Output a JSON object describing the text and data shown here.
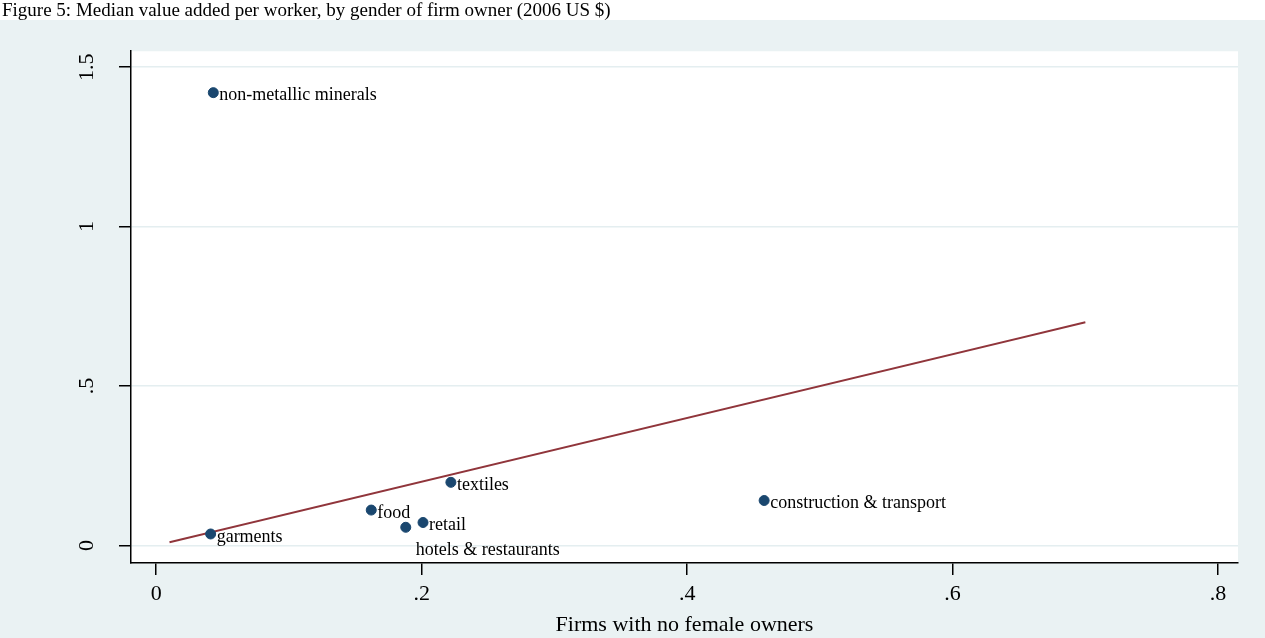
{
  "chart_data": {
    "type": "scatter",
    "title": "Figure 5: Median value added per worker, by gender of firm owner (2006 US $)",
    "xlabel": "Firms with no female owners",
    "series": [
      {
        "type": "scatter",
        "color": "#1a476f",
        "marker": "circle",
        "x": [
          0.043,
          0.041,
          0.162,
          0.201,
          0.188,
          0.222,
          0.458
        ],
        "values": [
          1.42,
          0.036,
          0.111,
          0.072,
          0.057,
          0.198,
          0.141
        ]
      },
      {
        "type": "line",
        "color": "#90353b",
        "x": [
          0.01,
          0.7
        ],
        "values": [
          0.01,
          0.7
        ]
      }
    ],
    "annotations": [
      {
        "text": "non-metallic minerals",
        "x": 0.043,
        "y": 1.42
      },
      {
        "text": "garments",
        "x": 0.041,
        "y": 0.036
      },
      {
        "text": "food",
        "x": 0.162,
        "y": 0.111
      },
      {
        "text": "retail",
        "x": 0.201,
        "y": 0.072
      },
      {
        "text": "hotels & restaurants",
        "x": 0.188,
        "y": 0.057
      },
      {
        "text": "textiles",
        "x": 0.222,
        "y": 0.198
      },
      {
        "text": "construction & transport",
        "x": 0.458,
        "y": 0.141
      }
    ],
    "xlim": [
      -0.019,
      0.815
    ],
    "ylim": [
      -0.055,
      1.55
    ],
    "xticks": [
      0,
      {
        "value": 0.2,
        "label": ".2"
      },
      {
        "value": 0.4,
        "label": ".4"
      },
      {
        "value": 0.6,
        "label": ".6"
      },
      {
        "value": 0.8,
        "label": ".8"
      }
    ],
    "yticks": [
      0,
      {
        "value": 0.5,
        "label": ".5"
      },
      1,
      1.5
    ],
    "grid": "y",
    "line_style": "solid",
    "legend": false
  }
}
